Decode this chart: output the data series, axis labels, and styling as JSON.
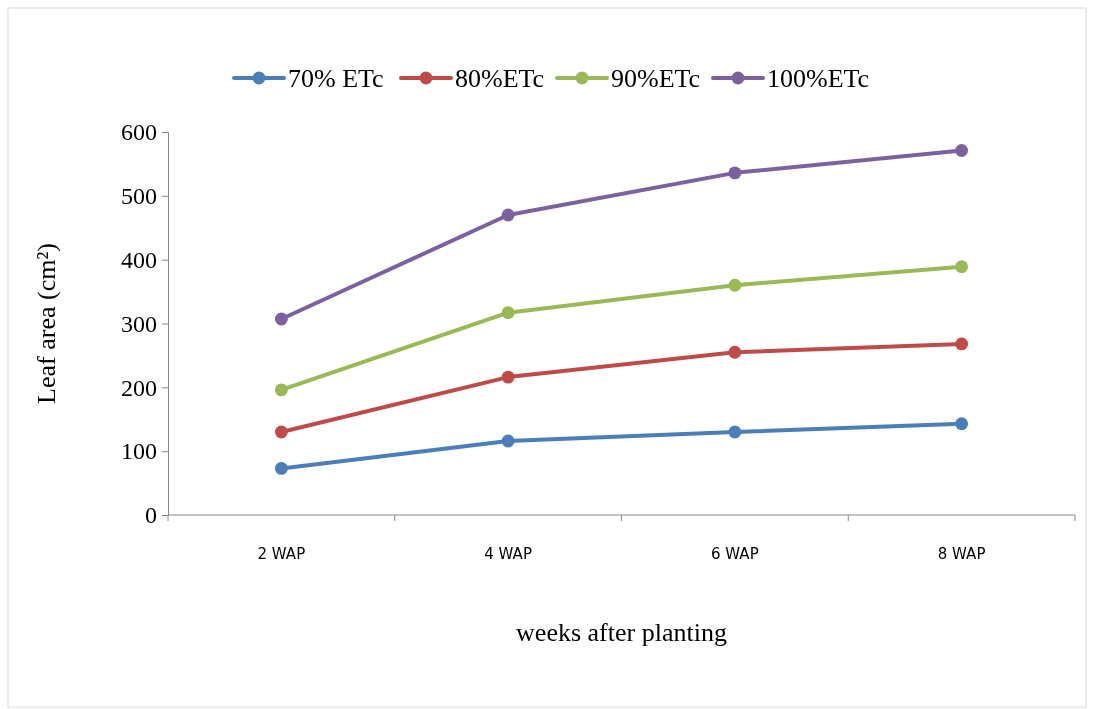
{
  "chart_data": {
    "type": "line",
    "xlabel": "weeks after planting",
    "ylabel": "Leaf area (cm²)",
    "categories": [
      "2 WAP",
      "4 WAP",
      "6 WAP",
      "8 WAP"
    ],
    "series": [
      {
        "name": "70% ETc",
        "color": "#4a7ebb",
        "values": [
          73,
          116,
          130,
          143
        ]
      },
      {
        "name": "80%ETc",
        "color": "#be4b48",
        "values": [
          130,
          216,
          255,
          268
        ]
      },
      {
        "name": "90%ETc",
        "color": "#98b954",
        "values": [
          196,
          317,
          360,
          389
        ]
      },
      {
        "name": "100%ETc",
        "color": "#7d60a0",
        "values": [
          307,
          470,
          536,
          571
        ]
      }
    ],
    "ylim": [
      0,
      600
    ],
    "yticks": [
      0,
      100,
      200,
      300,
      400,
      500,
      600
    ],
    "grid": false,
    "legend": "top",
    "marker": "circle",
    "line_style": "solid"
  }
}
